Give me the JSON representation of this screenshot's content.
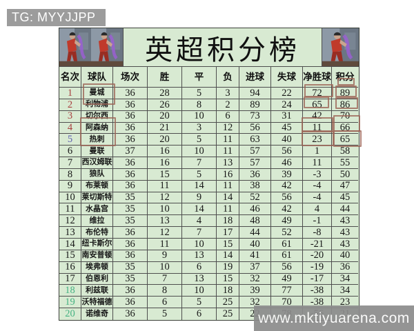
{
  "banner": {
    "text": "TG: MYYJJPP"
  },
  "title": "英超积分榜",
  "decor": {
    "left_image": "table-tennis-players-photo-x2",
    "right_image": "table-tennis-players-photo"
  },
  "table": {
    "columns": [
      "名次",
      "球队",
      "场次",
      "胜",
      "平",
      "负",
      "进球",
      "失球",
      "净胜球",
      "积分"
    ],
    "rows": [
      {
        "rank": "1",
        "team": "曼城",
        "played": "36",
        "win": "28",
        "draw": "5",
        "loss": "3",
        "gf": "94",
        "ga": "22",
        "gd": "72",
        "pts": "89",
        "rank_color": "red"
      },
      {
        "rank": "2",
        "team": "利物浦",
        "played": "36",
        "win": "26",
        "draw": "8",
        "loss": "2",
        "gf": "89",
        "ga": "24",
        "gd": "65",
        "pts": "86",
        "rank_color": "red"
      },
      {
        "rank": "3",
        "team": "切尔西",
        "played": "36",
        "win": "20",
        "draw": "10",
        "loss": "6",
        "gf": "73",
        "ga": "31",
        "gd": "42",
        "pts": "70",
        "rank_color": "red"
      },
      {
        "rank": "4",
        "team": "阿森纳",
        "played": "36",
        "win": "21",
        "draw": "3",
        "loss": "12",
        "gf": "56",
        "ga": "45",
        "gd": "11",
        "pts": "66",
        "rank_color": "red"
      },
      {
        "rank": "5",
        "team": "热刺",
        "played": "36",
        "win": "20",
        "draw": "5",
        "loss": "11",
        "gf": "63",
        "ga": "40",
        "gd": "23",
        "pts": "65",
        "rank_color": "blue"
      },
      {
        "rank": "6",
        "team": "曼联",
        "played": "37",
        "win": "16",
        "draw": "10",
        "loss": "11",
        "gf": "57",
        "ga": "56",
        "gd": "1",
        "pts": "58",
        "rank_color": "black"
      },
      {
        "rank": "7",
        "team": "西汉姆联",
        "played": "36",
        "win": "16",
        "draw": "7",
        "loss": "13",
        "gf": "57",
        "ga": "46",
        "gd": "11",
        "pts": "55",
        "rank_color": "black"
      },
      {
        "rank": "8",
        "team": "狼队",
        "played": "36",
        "win": "15",
        "draw": "5",
        "loss": "16",
        "gf": "36",
        "ga": "39",
        "gd": "-3",
        "pts": "50",
        "rank_color": "black"
      },
      {
        "rank": "9",
        "team": "布莱顿",
        "played": "36",
        "win": "11",
        "draw": "14",
        "loss": "11",
        "gf": "38",
        "ga": "42",
        "gd": "-4",
        "pts": "47",
        "rank_color": "black"
      },
      {
        "rank": "10",
        "team": "莱切斯特",
        "played": "35",
        "win": "12",
        "draw": "9",
        "loss": "14",
        "gf": "52",
        "ga": "56",
        "gd": "-4",
        "pts": "45",
        "rank_color": "black"
      },
      {
        "rank": "11",
        "team": "水晶宫",
        "played": "35",
        "win": "10",
        "draw": "14",
        "loss": "11",
        "gf": "46",
        "ga": "42",
        "gd": "4",
        "pts": "44",
        "rank_color": "black"
      },
      {
        "rank": "12",
        "team": "维拉",
        "played": "35",
        "win": "13",
        "draw": "4",
        "loss": "18",
        "gf": "48",
        "ga": "49",
        "gd": "-1",
        "pts": "43",
        "rank_color": "black"
      },
      {
        "rank": "13",
        "team": "布伦特",
        "played": "36",
        "win": "12",
        "draw": "7",
        "loss": "17",
        "gf": "44",
        "ga": "52",
        "gd": "-8",
        "pts": "43",
        "rank_color": "black"
      },
      {
        "rank": "14",
        "team": "纽卡斯尔",
        "played": "36",
        "win": "11",
        "draw": "10",
        "loss": "15",
        "gf": "40",
        "ga": "61",
        "gd": "-21",
        "pts": "43",
        "rank_color": "black"
      },
      {
        "rank": "15",
        "team": "南安普顿",
        "played": "36",
        "win": "9",
        "draw": "13",
        "loss": "14",
        "gf": "41",
        "ga": "61",
        "gd": "-20",
        "pts": "40",
        "rank_color": "black"
      },
      {
        "rank": "16",
        "team": "埃弗顿",
        "played": "35",
        "win": "10",
        "draw": "6",
        "loss": "19",
        "gf": "37",
        "ga": "56",
        "gd": "-19",
        "pts": "36",
        "rank_color": "black"
      },
      {
        "rank": "17",
        "team": "伯恩利",
        "played": "35",
        "win": "7",
        "draw": "13",
        "loss": "15",
        "gf": "32",
        "ga": "49",
        "gd": "-17",
        "pts": "34",
        "rank_color": "black"
      },
      {
        "rank": "18",
        "team": "利兹联",
        "played": "36",
        "win": "8",
        "draw": "10",
        "loss": "18",
        "gf": "39",
        "ga": "77",
        "gd": "-38",
        "pts": "34",
        "rank_color": "green"
      },
      {
        "rank": "19",
        "team": "沃特福德",
        "played": "36",
        "win": "6",
        "draw": "5",
        "loss": "25",
        "gf": "32",
        "ga": "70",
        "gd": "-38",
        "pts": "23",
        "rank_color": "green"
      },
      {
        "rank": "20",
        "team": "诺维奇",
        "played": "36",
        "win": "5",
        "draw": "6",
        "loss": "25",
        "gf": "22",
        "ga": "78",
        "gd": "-56",
        "pts": "21",
        "rank_color": "green"
      }
    ]
  },
  "watermark": {
    "text": "www.mktiyuarena.com"
  },
  "colors": {
    "table_bg": "#d8ead2",
    "banner_bg": "#9c9c9c",
    "watermark_bg": "#8c8c8c",
    "grid_line": "#4d4d4d",
    "rank_red": "#a84040",
    "rank_blue": "#6060b0",
    "rank_green": "#44b282",
    "rank_black": "#161616",
    "highlight_box": "#9c6456"
  },
  "chart_data": {
    "type": "table",
    "title": "英超积分榜",
    "columns": [
      "名次",
      "球队",
      "场次",
      "胜",
      "平",
      "负",
      "进球",
      "失球",
      "净胜球",
      "积分"
    ],
    "rows": [
      [
        1,
        "曼城",
        36,
        28,
        5,
        3,
        94,
        22,
        72,
        89
      ],
      [
        2,
        "利物浦",
        36,
        26,
        8,
        2,
        89,
        24,
        65,
        86
      ],
      [
        3,
        "切尔西",
        36,
        20,
        10,
        6,
        73,
        31,
        42,
        70
      ],
      [
        4,
        "阿森纳",
        36,
        21,
        3,
        12,
        56,
        45,
        11,
        66
      ],
      [
        5,
        "热刺",
        36,
        20,
        5,
        11,
        63,
        40,
        23,
        65
      ],
      [
        6,
        "曼联",
        37,
        16,
        10,
        11,
        57,
        56,
        1,
        58
      ],
      [
        7,
        "西汉姆联",
        36,
        16,
        7,
        13,
        57,
        46,
        11,
        55
      ],
      [
        8,
        "狼队",
        36,
        15,
        5,
        16,
        36,
        39,
        -3,
        50
      ],
      [
        9,
        "布莱顿",
        36,
        11,
        14,
        11,
        38,
        42,
        -4,
        47
      ],
      [
        10,
        "莱切斯特",
        35,
        12,
        9,
        14,
        52,
        56,
        -4,
        45
      ],
      [
        11,
        "水晶宫",
        35,
        10,
        14,
        11,
        46,
        42,
        4,
        44
      ],
      [
        12,
        "维拉",
        35,
        13,
        4,
        18,
        48,
        49,
        -1,
        43
      ],
      [
        13,
        "布伦特",
        36,
        12,
        7,
        17,
        44,
        52,
        -8,
        43
      ],
      [
        14,
        "纽卡斯尔",
        36,
        11,
        10,
        15,
        40,
        61,
        -21,
        43
      ],
      [
        15,
        "南安普顿",
        36,
        9,
        13,
        14,
        41,
        61,
        -20,
        40
      ],
      [
        16,
        "埃弗顿",
        35,
        10,
        6,
        19,
        37,
        56,
        -19,
        36
      ],
      [
        17,
        "伯恩利",
        35,
        7,
        13,
        15,
        32,
        49,
        -17,
        34
      ],
      [
        18,
        "利兹联",
        36,
        8,
        10,
        18,
        39,
        77,
        -38,
        34
      ],
      [
        19,
        "沃特福德",
        36,
        6,
        5,
        25,
        32,
        70,
        -38,
        23
      ],
      [
        20,
        "诺维奇",
        36,
        5,
        6,
        25,
        22,
        78,
        -56,
        21
      ]
    ]
  }
}
